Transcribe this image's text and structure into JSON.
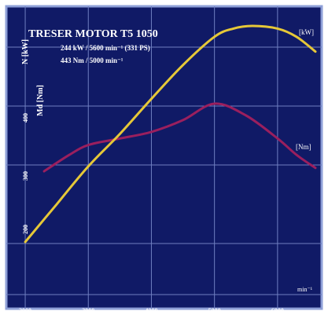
{
  "colors": {
    "background": "#101a66",
    "grid": "#6f7fc0",
    "border": "#8fa0d8",
    "power": "#e6c838",
    "torque": "#9a1f5e",
    "text": "#ffffff"
  },
  "chart_data": {
    "type": "line",
    "title": "TRESER MOTOR T5 1050",
    "subtitle_lines": [
      "244 kW / 5600 min⁻¹ (331 PS)",
      "443 Nm / 5000 min⁻¹"
    ],
    "xlabel": "min⁻¹",
    "x_ticks": [
      2000,
      3000,
      4000,
      5000,
      6000
    ],
    "xlim": [
      1700,
      6700
    ],
    "left_axis_labels": [
      "N [kW]",
      "Md [Nm]"
    ],
    "left_ticks": [
      "400",
      "300",
      "200"
    ],
    "grid": true,
    "series": [
      {
        "name": "[kW]",
        "x": [
          2000,
          2500,
          3000,
          3500,
          4000,
          4500,
          5000,
          5300,
          5600,
          6000,
          6300,
          6600
        ],
        "y": [
          84,
          112,
          140,
          164,
          190,
          215,
          236,
          242,
          244,
          242,
          236,
          225
        ]
      },
      {
        "name": "[Nm]",
        "x": [
          2300,
          2700,
          3000,
          3500,
          4000,
          4500,
          5000,
          5500,
          6000,
          6300,
          6600
        ],
        "y": [
          340,
          365,
          380,
          390,
          400,
          418,
          443,
          425,
          390,
          365,
          345
        ]
      }
    ],
    "series_label_power": "[kW]",
    "series_label_torque": "[Nm]"
  }
}
